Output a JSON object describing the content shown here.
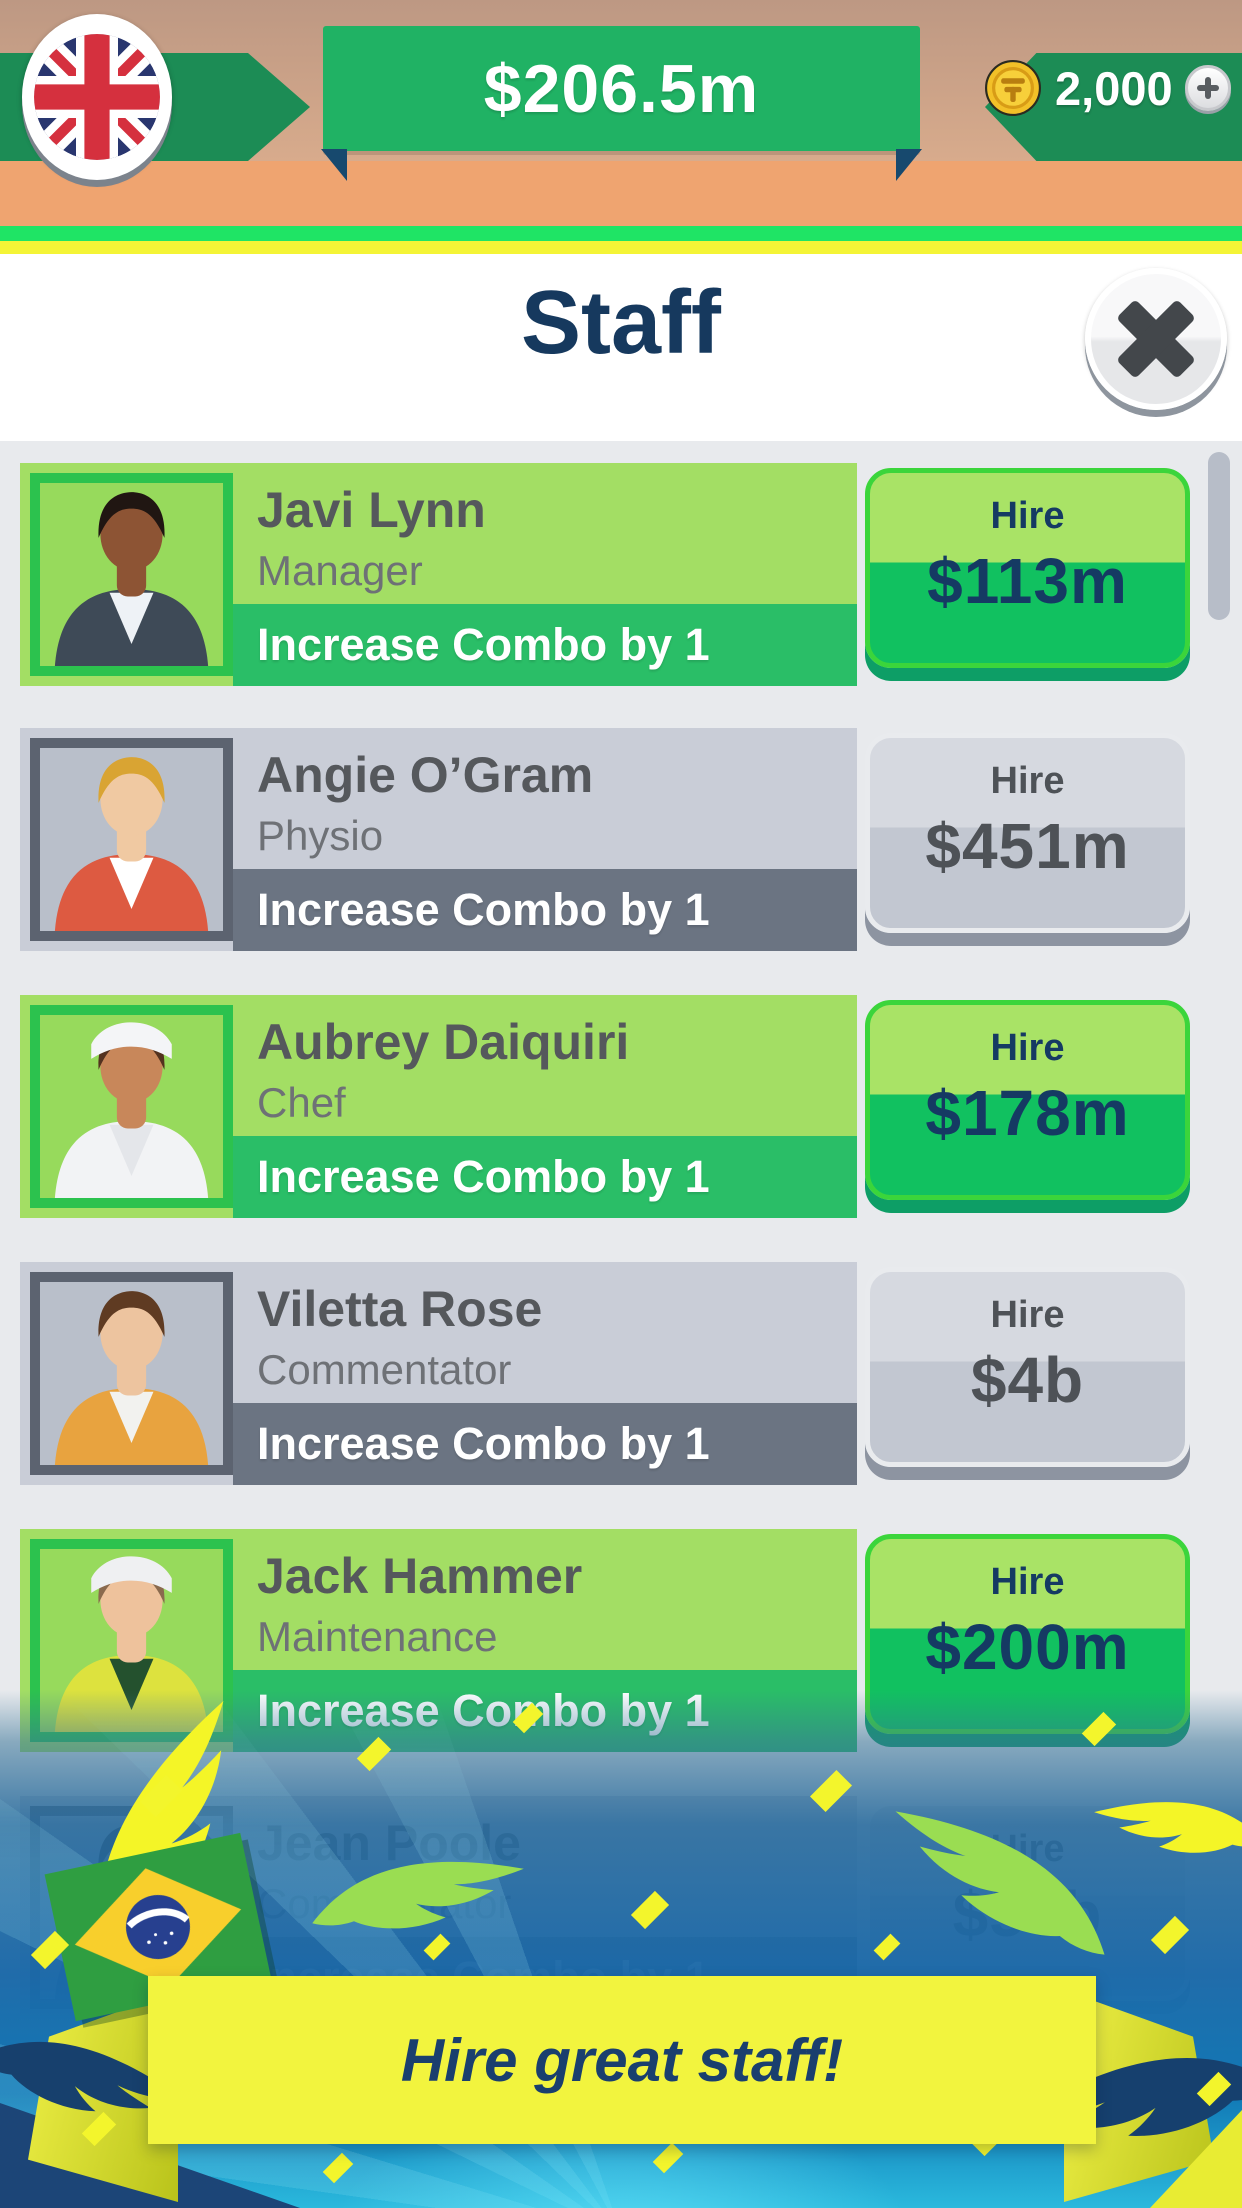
{
  "top_bar": {
    "money": "$206.5m",
    "coins": "2,000",
    "flag_icon": "uk-flag-icon",
    "coin_icon": "gold-coin-icon",
    "add_button_icon": "plus-icon"
  },
  "panel": {
    "title": "Staff",
    "close_icon": "close-x-icon"
  },
  "hire_label": "Hire",
  "staff_list": [
    {
      "name": "Javi Lynn",
      "role": "Manager",
      "perk": "Increase Combo by 1",
      "price": "$113m",
      "affordable": true,
      "avatar": {
        "skin": "#8d5434",
        "hair": "#201612",
        "outfit": "#3e4a57",
        "shirt": "#eef2f6",
        "hat": null
      }
    },
    {
      "name": "Angie O’Gram",
      "role": "Physio",
      "perk": "Increase Combo by 1",
      "price": "$451m",
      "affordable": false,
      "avatar": {
        "skin": "#f0c9a2",
        "hair": "#d9a433",
        "outfit": "#dd5a41",
        "shirt": "#ffffff",
        "hat": null
      }
    },
    {
      "name": "Aubrey Daiquiri",
      "role": "Chef",
      "perk": "Increase Combo by 1",
      "price": "$178m",
      "affordable": true,
      "avatar": {
        "skin": "#c8875a",
        "hair": "#53321f",
        "outfit": "#f2f3f5",
        "shirt": "#e4e6ea",
        "hat": "#f4f5f7"
      }
    },
    {
      "name": "Viletta Rose",
      "role": "Commentator",
      "perk": "Increase Combo by 1",
      "price": "$4b",
      "affordable": false,
      "avatar": {
        "skin": "#edc49f",
        "hair": "#5f3b22",
        "outfit": "#e8a33f",
        "shirt": "#f2f2ef",
        "hat": null
      }
    },
    {
      "name": "Jack Hammer",
      "role": "Maintenance",
      "perk": "Increase Combo by 1",
      "price": "$200m",
      "affordable": true,
      "avatar": {
        "skin": "#eec29c",
        "hair": "#8a6a4e",
        "outfit": "#dde23e",
        "shirt": "#24512e",
        "hat": "#eff0f2"
      }
    },
    {
      "name": "Jean Poole",
      "role": "Commentator",
      "perk": "Increase Combo by 1",
      "price": "$56b",
      "affordable": false,
      "avatar": {
        "skin": "#caa080",
        "hair": "#241a16",
        "outfit": "#56688a",
        "shirt": "#e8e8ea",
        "hat": null
      }
    }
  ],
  "footer": {
    "banner_text": "Hire great staff!",
    "flag_icon": "brazil-flag-icon",
    "decor_icons": [
      "feather-icon",
      "confetti-icon"
    ]
  },
  "colors": {
    "money_banner_green": "#20b264",
    "top_band_green": "#1c8c55",
    "top_orange": "#efa470",
    "strip_green": "#1fe465",
    "strip_yellow": "#f4f436",
    "panel_title_navy": "#16395e",
    "list_bg": "#e8eaed",
    "card_affordable_green": "#a3de64",
    "combo_affordable_green": "#2abe67",
    "card_locked_gray": "#c9cdd7",
    "combo_locked_gray": "#6b7482",
    "hire_text_navy": "#153a63",
    "footer_banner_yellow": "#f2f43e",
    "footer_blue": "#1178b5"
  }
}
